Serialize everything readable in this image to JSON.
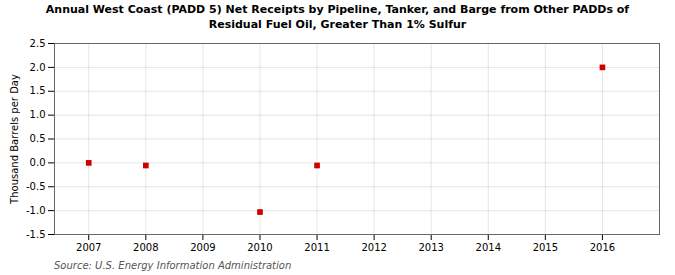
{
  "chart_data": {
    "type": "scatter",
    "title": "Annual West Coast (PADD 5) Net Receipts by Pipeline, Tanker, and Barge from Other PADDs of\nResidual Fuel Oil, Greater Than 1% Sulfur",
    "ylabel": "Thousand Barrels per Day",
    "source": "Source: U.S. Energy Information Administration",
    "x": [
      2007,
      2008,
      2010,
      2011,
      2016
    ],
    "values": [
      0.0,
      -0.055,
      -1.03,
      -0.055,
      2.0
    ],
    "color": "#cc0000",
    "marker": "square",
    "xlim": [
      2006.4,
      2017.0
    ],
    "ylim": [
      -1.5,
      2.5
    ],
    "xticks": [
      2007,
      2008,
      2009,
      2010,
      2011,
      2012,
      2013,
      2014,
      2015,
      2016
    ],
    "yticks": [
      -1.5,
      {
        "value": -1,
        "label": "-1.0"
      },
      -0.5,
      {
        "value": 0,
        "label": "0.0"
      },
      0.5,
      {
        "value": 1,
        "label": "1.0"
      },
      1.5,
      {
        "value": 2,
        "label": "2.0"
      },
      2.5
    ],
    "grid": true
  }
}
